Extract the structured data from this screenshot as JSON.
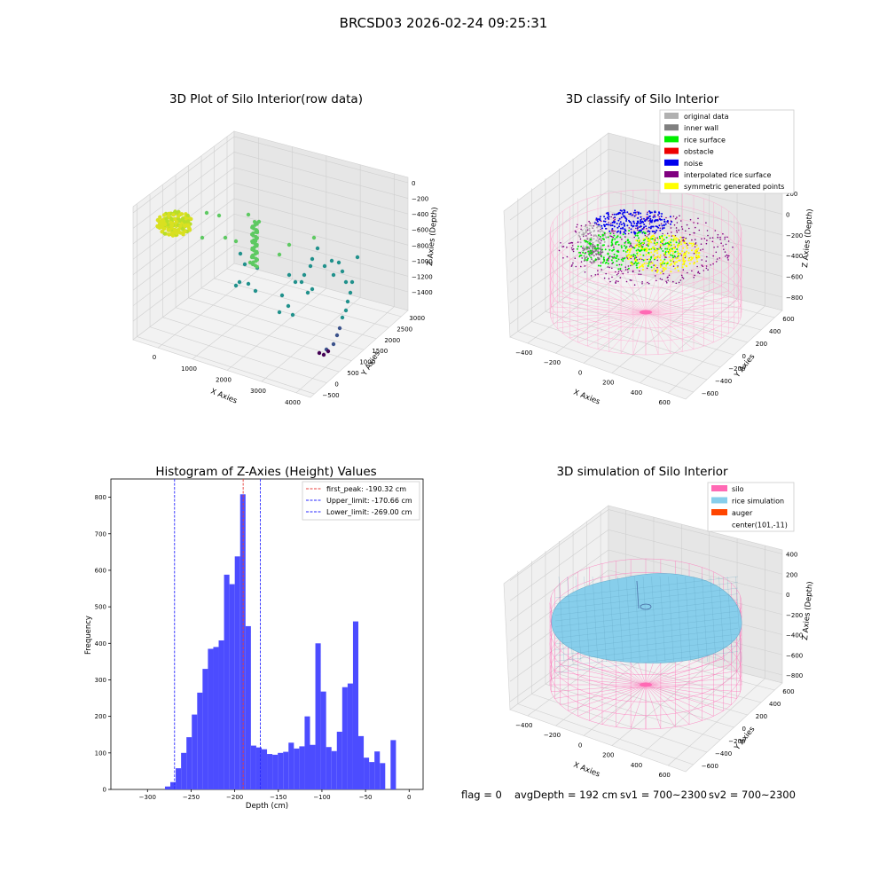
{
  "figure": {
    "title": "BRCSD03 2026-02-24 09:25:31",
    "status_line": {
      "flag": "flag = 0",
      "avg_depth": "avgDepth = 192 cm",
      "sv1": "sv1 = 700~2300",
      "sv2": "sv2 = 700~2300"
    }
  },
  "chart_data": [
    {
      "type": "scatter",
      "title": "3D Plot of Silo Interior(row data)",
      "xlabel": "X Axies",
      "ylabel": "Y Axies",
      "zlabel": "Z Axies (Depth)",
      "x_ticks": [
        "0",
        "1000",
        "2000",
        "3000",
        "4000"
      ],
      "y_ticks": [
        "−500",
        "0",
        "500",
        "1000",
        "1500",
        "2000",
        "2500",
        "3000"
      ],
      "z_ticks": [
        "0",
        "−200",
        "−400",
        "−600",
        "−800",
        "−1000",
        "−1200",
        "−1400"
      ],
      "colormap": [
        "#440154",
        "#3b528b",
        "#21918c",
        "#5ec962",
        "#fde725"
      ]
    },
    {
      "type": "scatter",
      "title": "3D classify of Silo Interior",
      "xlabel": "X Axies",
      "ylabel": "Y Axies",
      "zlabel": "Z Axies (Depth)",
      "x_ticks": [
        "−400",
        "−200",
        "0",
        "200",
        "400",
        "600"
      ],
      "y_ticks": [
        "−600",
        "−400",
        "−200",
        "0",
        "200",
        "400",
        "600"
      ],
      "z_ticks": [
        "200",
        "0",
        "−200",
        "−400",
        "−600",
        "−800"
      ],
      "z_top_tick": "0",
      "legend": [
        {
          "label": "original data",
          "color": "#b0b0b0"
        },
        {
          "label": "inner wall",
          "color": "#808080"
        },
        {
          "label": "rice surface",
          "color": "#00ee00"
        },
        {
          "label": "obstacle",
          "color": "#ee0000"
        },
        {
          "label": "noise",
          "color": "#0000ee"
        },
        {
          "label": "interpolated rice surface",
          "color": "#800080"
        },
        {
          "label": "symmetric generated points",
          "color": "#ffff00"
        }
      ]
    },
    {
      "type": "bar",
      "title": "Histogram of Z-Axies (Height) Values",
      "xlabel": "Depth (cm)",
      "ylabel": "Frequency",
      "xlim": [
        -342,
        16
      ],
      "ylim": [
        0,
        850
      ],
      "x_ticks": [
        -300,
        -250,
        -200,
        -150,
        -100,
        -50,
        0
      ],
      "x_tick_labels": [
        "−300",
        "−250",
        "−200",
        "−150",
        "−100",
        "−50",
        "0"
      ],
      "y_ticks": [
        0,
        100,
        200,
        300,
        400,
        500,
        600,
        700,
        800
      ],
      "bin_start": -280,
      "bin_width": 6.16,
      "values": [
        8,
        20,
        58,
        100,
        143,
        205,
        265,
        330,
        385,
        390,
        408,
        588,
        562,
        638,
        808,
        447,
        120,
        115,
        110,
        97,
        95,
        100,
        103,
        128,
        112,
        118,
        200,
        122,
        400,
        268,
        116,
        105,
        158,
        280,
        290,
        460,
        146,
        87,
        75,
        104,
        72,
        0,
        135
      ],
      "bar_color": "#4c4cff",
      "vlines": [
        {
          "x": -190.32,
          "label": "first_peak: -190.32 cm",
          "color": "#e8413c"
        },
        {
          "x": -170.66,
          "label": "Upper_limit: -170.66 cm",
          "color": "#2a2aff"
        },
        {
          "x": -269.0,
          "label": "Lower_limit: -269.00 cm",
          "color": "#2a2aff"
        }
      ],
      "legend_position": "top-right"
    },
    {
      "type": "scatter",
      "title": "3D simulation of Silo Interior",
      "xlabel": "X Axies",
      "ylabel": "Y Axies",
      "zlabel": "Z Axies (Depth)",
      "x_ticks": [
        "−400",
        "−200",
        "0",
        "200",
        "400",
        "600"
      ],
      "y_ticks": [
        "−600",
        "−400",
        "−200",
        "0",
        "200",
        "400",
        "600"
      ],
      "z_ticks": [
        "400",
        "200",
        "0",
        "−200",
        "−400",
        "−600",
        "−800"
      ],
      "legend": [
        {
          "label": "silo",
          "color": "#ff69b4"
        },
        {
          "label": "rice simulation",
          "color": "#87ceeb"
        },
        {
          "label": "auger",
          "color": "#ff4500"
        },
        {
          "label": "center(101,-11)",
          "color": ""
        }
      ]
    }
  ]
}
